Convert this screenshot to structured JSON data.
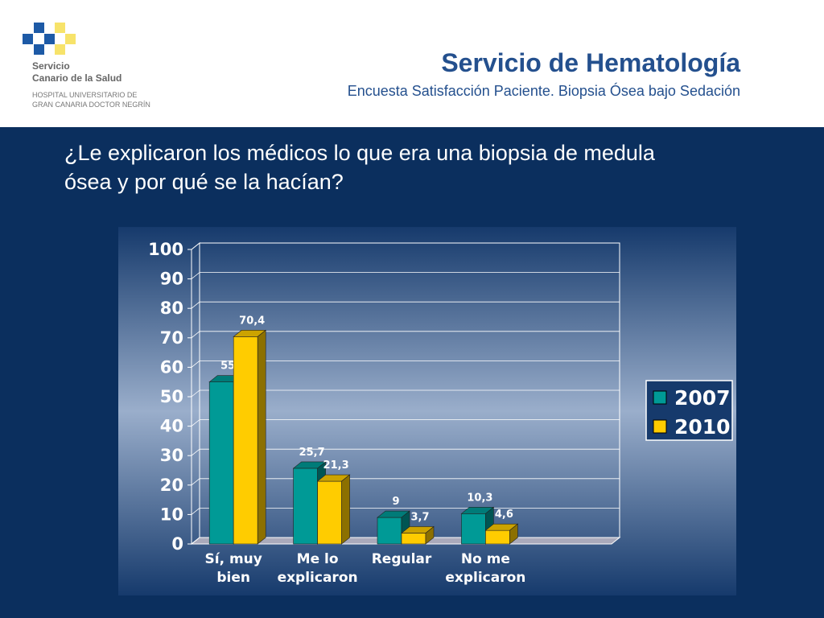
{
  "header": {
    "logo_lines": [
      "Servicio",
      "Canario de la Salud",
      "HOSPITAL UNIVERSITARIO DE",
      "GRAN CANARIA DOCTOR NEGRÍN"
    ],
    "title": "Servicio de Hematología",
    "subtitle": "Encuesta Satisfacción Paciente. Biopsia Ósea bajo Sedación"
  },
  "question": "¿Le explicaron los médicos lo que era una biopsia de medula ósea y por qué se la hacían?",
  "chart_data": {
    "type": "bar",
    "categories": [
      "Sí, muy bien",
      "Me lo explicaron",
      "Regular",
      "No me explicaron"
    ],
    "series": [
      {
        "name": "2007",
        "color": "#009a96",
        "values": [
          55,
          25.7,
          9,
          10.3
        ],
        "value_labels": [
          "55",
          "25,7",
          "9",
          "10,3"
        ]
      },
      {
        "name": "2010",
        "color": "#ffcc00",
        "values": [
          70.4,
          21.3,
          3.7,
          4.6
        ],
        "value_labels": [
          "70,4",
          "21,3",
          "3,7",
          "4,6"
        ]
      }
    ],
    "ylim": [
      0,
      100
    ],
    "yticks": [
      0,
      10,
      20,
      30,
      40,
      50,
      60,
      70,
      80,
      90,
      100
    ],
    "grid": true,
    "legend": "right"
  }
}
